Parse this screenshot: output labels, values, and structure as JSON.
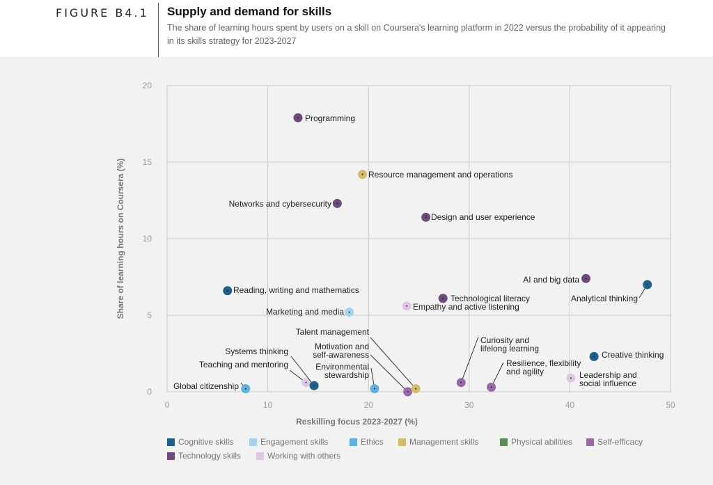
{
  "header": {
    "figure_label": "FIGURE B4.1",
    "title": "Supply and demand for skills",
    "subtitle": "The share of learning hours spent by users on a skill on Coursera's learning platform in 2022 versus the probability of it appearing in its skills strategy for 2023-2027"
  },
  "chart_data": {
    "type": "scatter",
    "title": "Supply and demand for skills",
    "xlabel": "Reskilling focus 2023-2027 (%)",
    "ylabel": "Share of learning hours on Coursera (%)",
    "xlim": [
      0,
      50
    ],
    "ylim": [
      0,
      20
    ],
    "xticks": [
      0,
      10,
      20,
      30,
      40,
      50
    ],
    "yticks": [
      0,
      5,
      10,
      15,
      20
    ],
    "grid": true,
    "legend_position": "bottom",
    "categories": [
      {
        "name": "Cognitive skills",
        "color": "#1f5f8b"
      },
      {
        "name": "Engagement skills",
        "color": "#a6d3ea"
      },
      {
        "name": "Ethics",
        "color": "#5fb1de"
      },
      {
        "name": "Management skills",
        "color": "#d4bb6e"
      },
      {
        "name": "Physical abilities",
        "color": "#5c8a5a"
      },
      {
        "name": "Self-efficacy",
        "color": "#9a6aa8"
      },
      {
        "name": "Technology skills",
        "color": "#6d4a7a"
      },
      {
        "name": "Working with others",
        "color": "#dcc8df"
      }
    ],
    "points": [
      {
        "label": "Programming",
        "x": 13.0,
        "y": 17.9,
        "category": "Technology skills"
      },
      {
        "label": "Resource management and operations",
        "x": 19.4,
        "y": 14.2,
        "category": "Management skills"
      },
      {
        "label": "Networks and cybersecurity",
        "x": 16.9,
        "y": 12.3,
        "category": "Technology skills"
      },
      {
        "label": "Design and user experience",
        "x": 25.7,
        "y": 11.4,
        "category": "Technology skills"
      },
      {
        "label": "AI and big data",
        "x": 41.6,
        "y": 7.4,
        "category": "Technology skills"
      },
      {
        "label": "Analytical thinking",
        "x": 47.7,
        "y": 7.0,
        "category": "Cognitive skills"
      },
      {
        "label": "Reading, writing and mathematics",
        "x": 6.0,
        "y": 6.6,
        "category": "Cognitive skills"
      },
      {
        "label": "Technological literacy",
        "x": 27.4,
        "y": 6.1,
        "category": "Technology skills"
      },
      {
        "label": "Empathy and active listening",
        "x": 23.8,
        "y": 5.6,
        "category": "Working with others"
      },
      {
        "label": "Marketing and media",
        "x": 18.1,
        "y": 5.2,
        "category": "Engagement skills"
      },
      {
        "label": "Creative thinking",
        "x": 42.4,
        "y": 2.3,
        "category": "Cognitive skills"
      },
      {
        "label": "Leadership and social influence",
        "x": 40.1,
        "y": 0.9,
        "category": "Working with others"
      },
      {
        "label": "Curiosity and lifelong learning",
        "x": 29.2,
        "y": 0.6,
        "category": "Self-efficacy"
      },
      {
        "label": "Resilience, flexibility and agility",
        "x": 32.2,
        "y": 0.3,
        "category": "Self-efficacy"
      },
      {
        "label": "Teaching and mentoring",
        "x": 13.8,
        "y": 0.6,
        "category": "Working with others"
      },
      {
        "label": "Systems thinking",
        "x": 14.6,
        "y": 0.4,
        "category": "Cognitive skills"
      },
      {
        "label": "Global citizenship",
        "x": 7.8,
        "y": 0.2,
        "category": "Ethics"
      },
      {
        "label": "Environmental stewardship",
        "x": 20.6,
        "y": 0.2,
        "category": "Ethics"
      },
      {
        "label": "Motivation and self-awareness",
        "x": 23.9,
        "y": 0.0,
        "category": "Self-efficacy"
      },
      {
        "label": "Talent management",
        "x": 24.7,
        "y": 0.2,
        "category": "Management skills"
      }
    ]
  }
}
